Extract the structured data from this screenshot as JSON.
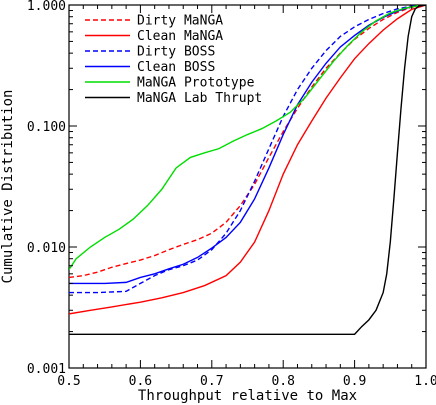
{
  "chart_data": {
    "type": "line",
    "title": "",
    "xlabel": "Throughput relative to Max",
    "ylabel": "Cumulative Distribution",
    "xlim": [
      0.5,
      1.0
    ],
    "ylim": [
      0.001,
      1.0
    ],
    "yscale": "log",
    "grid": false,
    "legend_position": "top-left",
    "x_ticks": [
      0.5,
      0.6,
      0.7,
      0.8,
      0.9,
      1.0
    ],
    "x_tick_labels": [
      "0.5",
      "0.6",
      "0.7",
      "0.8",
      "0.9",
      "1.0"
    ],
    "y_ticks": [
      0.001,
      0.01,
      0.1,
      1.0
    ],
    "y_tick_labels": [
      "0.001",
      "0.010",
      "0.100",
      "1.000"
    ],
    "series": [
      {
        "name": "Dirty MaNGA",
        "color": "#ff0000",
        "dash": "dashed",
        "points": [
          [
            0.5,
            0.0056
          ],
          [
            0.52,
            0.0058
          ],
          [
            0.54,
            0.0062
          ],
          [
            0.56,
            0.0068
          ],
          [
            0.58,
            0.0073
          ],
          [
            0.6,
            0.0078
          ],
          [
            0.62,
            0.0085
          ],
          [
            0.64,
            0.0095
          ],
          [
            0.66,
            0.0105
          ],
          [
            0.68,
            0.0115
          ],
          [
            0.7,
            0.013
          ],
          [
            0.72,
            0.016
          ],
          [
            0.74,
            0.022
          ],
          [
            0.76,
            0.033
          ],
          [
            0.78,
            0.055
          ],
          [
            0.8,
            0.09
          ],
          [
            0.82,
            0.14
          ],
          [
            0.84,
            0.21
          ],
          [
            0.86,
            0.3
          ],
          [
            0.88,
            0.4
          ],
          [
            0.9,
            0.52
          ],
          [
            0.92,
            0.64
          ],
          [
            0.94,
            0.76
          ],
          [
            0.96,
            0.87
          ],
          [
            0.98,
            0.96
          ],
          [
            1.0,
            1.0
          ]
        ]
      },
      {
        "name": "Clean MaNGA",
        "color": "#ff0000",
        "dash": "solid",
        "points": [
          [
            0.5,
            0.0028
          ],
          [
            0.53,
            0.003
          ],
          [
            0.56,
            0.0032
          ],
          [
            0.6,
            0.0035
          ],
          [
            0.63,
            0.0038
          ],
          [
            0.66,
            0.0042
          ],
          [
            0.69,
            0.0048
          ],
          [
            0.72,
            0.0058
          ],
          [
            0.74,
            0.0075
          ],
          [
            0.76,
            0.011
          ],
          [
            0.78,
            0.02
          ],
          [
            0.8,
            0.04
          ],
          [
            0.82,
            0.07
          ],
          [
            0.84,
            0.11
          ],
          [
            0.86,
            0.17
          ],
          [
            0.88,
            0.25
          ],
          [
            0.9,
            0.36
          ],
          [
            0.92,
            0.48
          ],
          [
            0.94,
            0.62
          ],
          [
            0.96,
            0.77
          ],
          [
            0.98,
            0.92
          ],
          [
            1.0,
            1.0
          ]
        ]
      },
      {
        "name": "Dirty BOSS",
        "color": "#0000ff",
        "dash": "dashed",
        "points": [
          [
            0.5,
            0.0042
          ],
          [
            0.54,
            0.0042
          ],
          [
            0.58,
            0.0043
          ],
          [
            0.6,
            0.005
          ],
          [
            0.62,
            0.0058
          ],
          [
            0.64,
            0.0065
          ],
          [
            0.66,
            0.007
          ],
          [
            0.68,
            0.0078
          ],
          [
            0.7,
            0.0095
          ],
          [
            0.72,
            0.013
          ],
          [
            0.74,
            0.02
          ],
          [
            0.76,
            0.035
          ],
          [
            0.78,
            0.065
          ],
          [
            0.8,
            0.12
          ],
          [
            0.82,
            0.2
          ],
          [
            0.84,
            0.3
          ],
          [
            0.86,
            0.42
          ],
          [
            0.88,
            0.55
          ],
          [
            0.9,
            0.66
          ],
          [
            0.92,
            0.76
          ],
          [
            0.94,
            0.85
          ],
          [
            0.96,
            0.93
          ],
          [
            0.98,
            0.98
          ],
          [
            1.0,
            1.0
          ]
        ]
      },
      {
        "name": "Clean BOSS",
        "color": "#0000ff",
        "dash": "solid",
        "points": [
          [
            0.5,
            0.005
          ],
          [
            0.55,
            0.005
          ],
          [
            0.58,
            0.0051
          ],
          [
            0.6,
            0.0056
          ],
          [
            0.62,
            0.006
          ],
          [
            0.64,
            0.0066
          ],
          [
            0.66,
            0.0072
          ],
          [
            0.68,
            0.0082
          ],
          [
            0.7,
            0.0098
          ],
          [
            0.72,
            0.012
          ],
          [
            0.74,
            0.016
          ],
          [
            0.76,
            0.025
          ],
          [
            0.78,
            0.045
          ],
          [
            0.8,
            0.085
          ],
          [
            0.82,
            0.15
          ],
          [
            0.84,
            0.23
          ],
          [
            0.86,
            0.33
          ],
          [
            0.88,
            0.45
          ],
          [
            0.9,
            0.56
          ],
          [
            0.92,
            0.68
          ],
          [
            0.94,
            0.79
          ],
          [
            0.96,
            0.89
          ],
          [
            0.98,
            0.97
          ],
          [
            1.0,
            1.0
          ]
        ]
      },
      {
        "name": "MaNGA Prototype",
        "color": "#00dd00",
        "dash": "solid",
        "points": [
          [
            0.5,
            0.0065
          ],
          [
            0.51,
            0.008
          ],
          [
            0.53,
            0.01
          ],
          [
            0.55,
            0.012
          ],
          [
            0.57,
            0.014
          ],
          [
            0.59,
            0.017
          ],
          [
            0.61,
            0.022
          ],
          [
            0.63,
            0.03
          ],
          [
            0.65,
            0.045
          ],
          [
            0.67,
            0.055
          ],
          [
            0.69,
            0.06
          ],
          [
            0.71,
            0.065
          ],
          [
            0.73,
            0.075
          ],
          [
            0.75,
            0.085
          ],
          [
            0.77,
            0.095
          ],
          [
            0.79,
            0.11
          ],
          [
            0.81,
            0.13
          ],
          [
            0.83,
            0.17
          ],
          [
            0.85,
            0.24
          ],
          [
            0.87,
            0.34
          ],
          [
            0.89,
            0.46
          ],
          [
            0.91,
            0.6
          ],
          [
            0.93,
            0.74
          ],
          [
            0.95,
            0.86
          ],
          [
            0.97,
            0.94
          ],
          [
            0.99,
            0.99
          ],
          [
            1.0,
            1.0
          ]
        ]
      },
      {
        "name": "MaNGA Lab Thrupt",
        "color": "#000000",
        "dash": "solid",
        "points": [
          [
            0.5,
            0.0019
          ],
          [
            0.9,
            0.0019
          ],
          [
            0.91,
            0.0022
          ],
          [
            0.92,
            0.0025
          ],
          [
            0.93,
            0.003
          ],
          [
            0.94,
            0.0042
          ],
          [
            0.945,
            0.006
          ],
          [
            0.95,
            0.011
          ],
          [
            0.955,
            0.025
          ],
          [
            0.96,
            0.06
          ],
          [
            0.965,
            0.14
          ],
          [
            0.97,
            0.3
          ],
          [
            0.975,
            0.55
          ],
          [
            0.98,
            0.8
          ],
          [
            0.985,
            0.93
          ],
          [
            0.99,
            0.98
          ],
          [
            1.0,
            1.0
          ]
        ]
      }
    ]
  }
}
